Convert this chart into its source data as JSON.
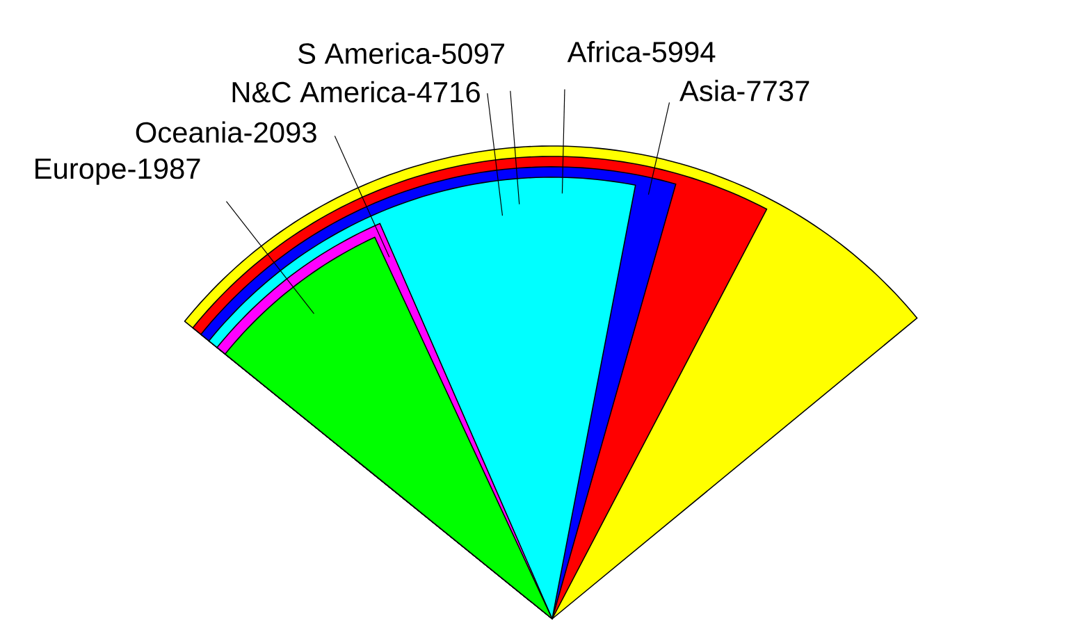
{
  "chart_data": {
    "type": "other",
    "categories": [
      "Europe-",
      "Oceania-",
      "N&C America-",
      "S America-",
      "Africa-",
      "Asia-"
    ],
    "data_labels": true,
    "values": [
      1987,
      2093,
      4716,
      5097,
      5994,
      7737
    ],
    "colors": [
      "#00ff00",
      "#ff00ff",
      "#00ffff",
      "#0000ff",
      "#ff0000",
      "#ffff00"
    ]
  }
}
